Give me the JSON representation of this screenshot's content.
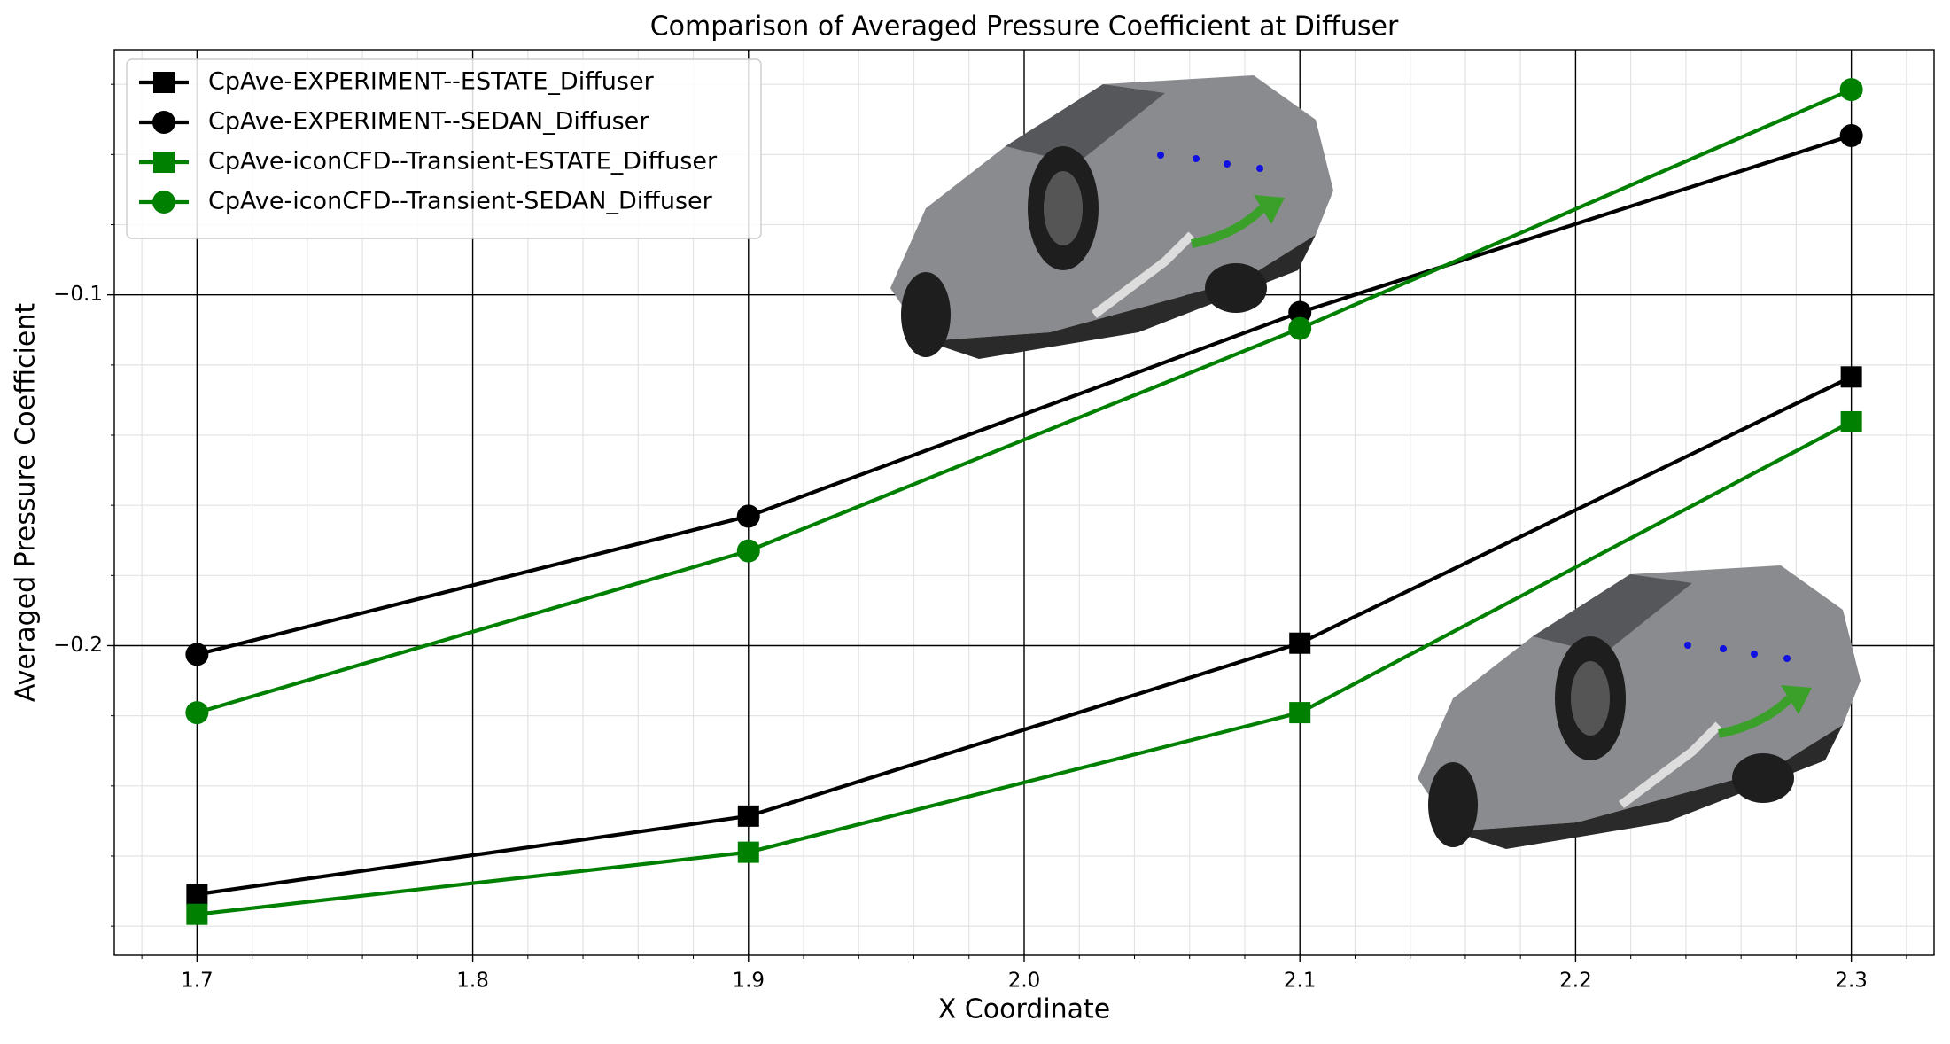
{
  "chart_data": {
    "type": "line",
    "title": "Comparison of Averaged Pressure Coefficient at Diffuser",
    "xlabel": "X Coordinate",
    "ylabel": "Averaged Pressure Coefficient",
    "x": [
      1.7,
      1.9,
      2.1,
      2.3
    ],
    "series": [
      {
        "name": "CpAve-EXPERIMENT--ESTATE_Diffuser",
        "color": "#000000",
        "marker": "square",
        "values": [
          -0.2709,
          -0.2486,
          -0.1993,
          -0.1234
        ]
      },
      {
        "name": "CpAve-EXPERIMENT--SEDAN_Diffuser",
        "color": "#000000",
        "marker": "circle",
        "values": [
          -0.2025,
          -0.1631,
          -0.105,
          -0.0546
        ]
      },
      {
        "name": "CpAve-iconCFD--Transient-ESTATE_Diffuser",
        "color": "#008000",
        "marker": "square",
        "values": [
          -0.2766,
          -0.2589,
          -0.2191,
          -0.1362
        ]
      },
      {
        "name": "CpAve-iconCFD--Transient-SEDAN_Diffuser",
        "color": "#008000",
        "marker": "circle",
        "values": [
          -0.2191,
          -0.173,
          -0.1096,
          -0.0415
        ]
      }
    ],
    "xlim": [
      1.67,
      2.33
    ],
    "ylim": [
      -0.2883,
      -0.0301
    ],
    "xticks": [
      1.7,
      1.8,
      1.9,
      {
        "value": 2,
        "label": "2.0"
      },
      2.1,
      2.2,
      2.3
    ],
    "yticks": [
      {
        "value": -0.2,
        "label": "−0.2"
      },
      {
        "value": -0.1,
        "label": "−0.1"
      }
    ],
    "xticks_minor": [
      1.68,
      1.72,
      1.74,
      1.76,
      1.78,
      1.82,
      1.84,
      1.86,
      1.88,
      1.92,
      1.94,
      1.96,
      1.98,
      2.02,
      2.04,
      2.06,
      2.08,
      2.12,
      2.14,
      2.16,
      2.18,
      2.22,
      2.24,
      2.26,
      2.28,
      2.32
    ],
    "yticks_minor": [
      -0.28,
      -0.26,
      -0.24,
      -0.22,
      -0.18,
      -0.16,
      -0.14,
      -0.12,
      -0.08,
      -0.06,
      -0.04
    ],
    "grid": true,
    "legend_position": "upper left"
  }
}
